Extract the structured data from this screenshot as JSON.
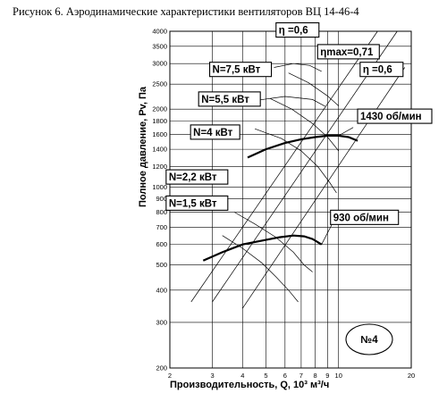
{
  "chart_data": {
    "type": "line",
    "title": "Рисунок 6. Аэродинамические характеристики вентиляторов ВЦ 14-46-4",
    "xlabel": "Производительность, Q, 10³ м³/ч",
    "ylabel": "Полное давление, Pv, Па",
    "xscale": "log",
    "yscale": "log",
    "xlim": [
      2,
      20
    ],
    "ylim": [
      200,
      4000
    ],
    "grid": true,
    "x_ticks": [
      "2",
      "3",
      "4",
      "5",
      "6",
      "7",
      "8",
      "9",
      "10",
      "20"
    ],
    "y_ticks": [
      "200",
      "300",
      "400",
      "500",
      "600",
      "700",
      "800",
      "900",
      "1000",
      "1200",
      "1400",
      "1600",
      "1800",
      "2000",
      "2500",
      "3000",
      "3500",
      "4000"
    ],
    "series": [
      {
        "name": "1430 об/мин",
        "x": [
          4.2,
          5,
          6,
          7,
          8,
          9,
          10,
          11,
          12
        ],
        "y": [
          1300,
          1400,
          1480,
          1530,
          1560,
          1580,
          1580,
          1560,
          1510
        ]
      },
      {
        "name": "930 об/мин",
        "x": [
          2.75,
          3.3,
          4,
          5,
          5.7,
          6.5,
          7.2,
          7.8,
          8.5
        ],
        "y": [
          520,
          560,
          600,
          625,
          640,
          650,
          645,
          630,
          600
        ]
      }
    ],
    "annotations": [
      "η =0,6",
      "ηmax=0,71",
      "η =0,6",
      "N=7,5 кВт",
      "N=5,5 кВт",
      "N=4 кВт",
      "N=2,2 кВт",
      "N=1,5 кВт",
      "№4"
    ]
  }
}
